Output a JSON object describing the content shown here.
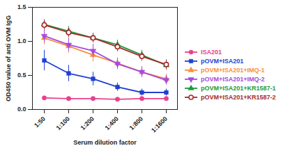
{
  "chart_data": {
    "type": "line",
    "x_label": "Serum dilution factor",
    "y_label": "OD450 value of anti OVM IgG",
    "categories": [
      "1:50",
      "1:100",
      "1:200",
      "1:400",
      "1:800",
      "1:1600"
    ],
    "ylim": [
      0,
      1.5
    ],
    "yticks": [
      {
        "value": 0,
        "label": "0.0"
      },
      {
        "value": 0.5,
        "label": "0.5"
      },
      {
        "value": 1,
        "label": "1.0"
      },
      {
        "value": 1.5,
        "label": "1.5"
      }
    ],
    "legend": "right",
    "series": [
      {
        "name": "ISA201",
        "color": "#e8408e",
        "marker": "circle",
        "values": [
          0.17,
          0.16,
          0.16,
          0.15,
          0.16,
          0.16
        ],
        "errors": [
          0.02,
          0.02,
          0.02,
          0.02,
          0.02,
          0.02
        ]
      },
      {
        "name": "pOVM+ISA201",
        "color": "#1f3fd6",
        "marker": "square",
        "values": [
          0.72,
          0.53,
          0.45,
          0.33,
          0.25,
          0.25
        ],
        "errors": [
          0.15,
          0.12,
          0.1,
          0.06,
          0.05,
          0.05
        ]
      },
      {
        "name": "pOVM+ISA201+IMQ-1",
        "color": "#f7913d",
        "marker": "triangle",
        "values": [
          1.05,
          0.93,
          0.8,
          0.68,
          0.55,
          0.45
        ],
        "errors": [
          0.1,
          0.1,
          0.1,
          0.08,
          0.08,
          0.07
        ]
      },
      {
        "name": "pOVM+ISA201+IMQ-2",
        "color": "#a64ae0",
        "marker": "triangle-down",
        "values": [
          1.08,
          0.95,
          0.86,
          0.67,
          0.55,
          0.43
        ],
        "errors": [
          0.1,
          0.1,
          0.1,
          0.08,
          0.08,
          0.07
        ]
      },
      {
        "name": "pOVM+ISA201+KR1587-1",
        "color": "#1e9a3a",
        "marker": "triangle",
        "values": [
          1.25,
          1.15,
          1.05,
          0.95,
          0.8,
          0.65
        ],
        "errors": [
          0.07,
          0.07,
          0.07,
          0.07,
          0.07,
          0.07
        ]
      },
      {
        "name": "pOVM+ISA201+KR1587-2",
        "color": "#a52a2a",
        "marker": "circle-open",
        "values": [
          1.24,
          1.13,
          1.05,
          0.92,
          0.78,
          0.66
        ],
        "errors": [
          0.07,
          0.07,
          0.07,
          0.07,
          0.07,
          0.07
        ]
      }
    ]
  }
}
